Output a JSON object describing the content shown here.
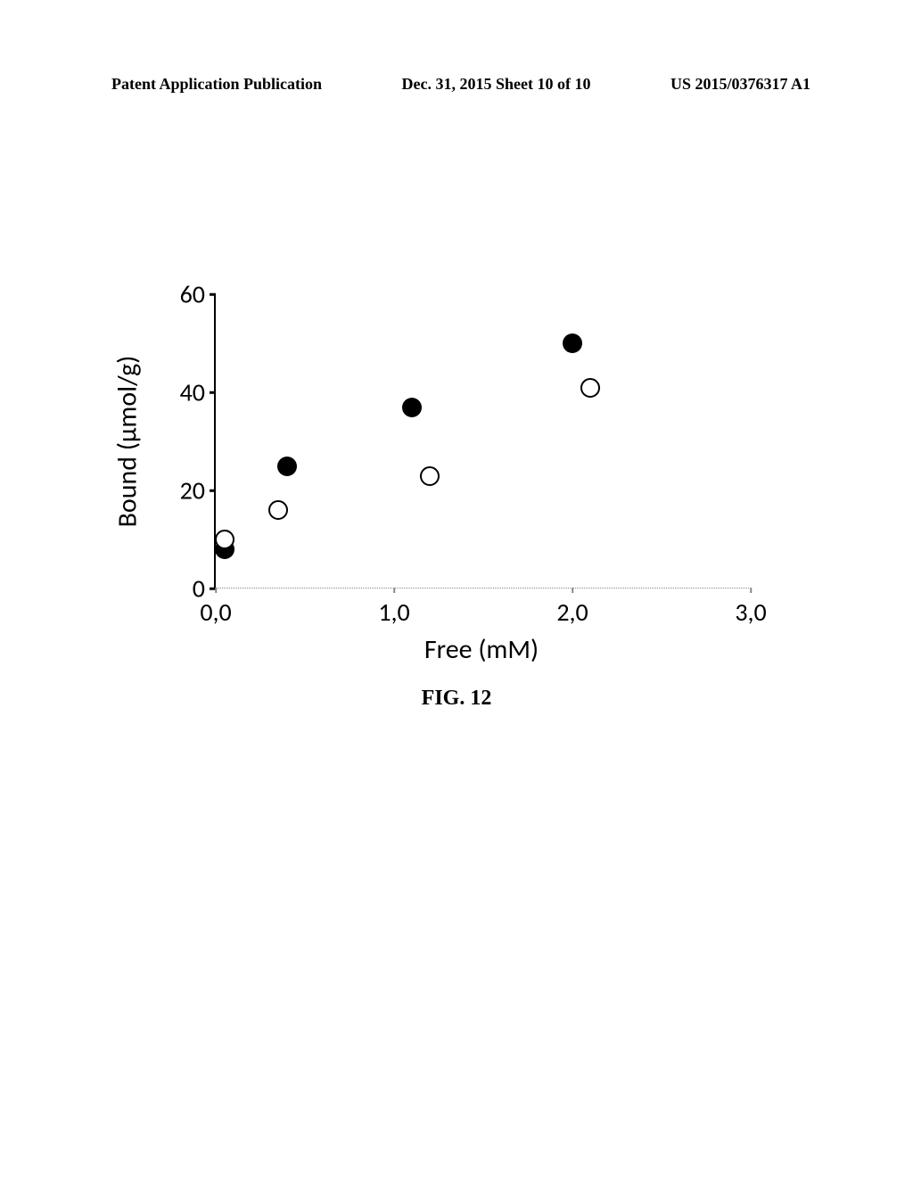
{
  "header": {
    "left": "Patent Application Publication",
    "center": "Dec. 31, 2015  Sheet 10 of 10",
    "right": "US 2015/0376317 A1"
  },
  "chart": {
    "type": "scatter",
    "y_label": "Bound (µmol/g)",
    "x_label": "Free (mM)",
    "y_ticks": [
      0,
      20,
      40,
      60
    ],
    "x_ticks": [
      "0,0",
      "1,0",
      "2,0",
      "3,0"
    ],
    "x_tick_values": [
      0.0,
      1.0,
      2.0,
      3.0
    ],
    "ylim": [
      0,
      60
    ],
    "xlim": [
      0.0,
      3.0
    ],
    "background_color": "#ffffff",
    "axis_color": "#000000",
    "label_fontsize": 30,
    "tick_fontsize": 28,
    "marker_size": 22,
    "series": [
      {
        "name": "filled",
        "marker": "filled-circle",
        "color": "#000000",
        "points": [
          {
            "x": 0.05,
            "y": 8
          },
          {
            "x": 0.4,
            "y": 25
          },
          {
            "x": 1.1,
            "y": 37
          },
          {
            "x": 2.0,
            "y": 50
          }
        ]
      },
      {
        "name": "open",
        "marker": "open-circle",
        "color": "#000000",
        "points": [
          {
            "x": 0.05,
            "y": 10
          },
          {
            "x": 0.35,
            "y": 16
          },
          {
            "x": 1.2,
            "y": 23
          },
          {
            "x": 2.1,
            "y": 41
          }
        ]
      }
    ]
  },
  "caption": "FIG. 12"
}
